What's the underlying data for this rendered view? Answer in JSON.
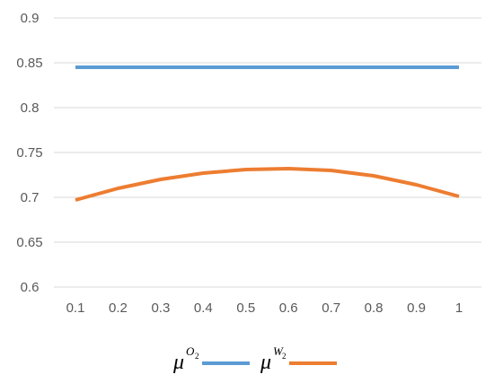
{
  "chart_data": {
    "type": "line",
    "title": "",
    "xlabel": "",
    "ylabel": "",
    "x": [
      0.1,
      0.2,
      0.3,
      0.4,
      0.5,
      0.6,
      0.7,
      0.8,
      0.9,
      1
    ],
    "x_tick_labels": [
      "0.1",
      "0.2",
      "0.3",
      "0.4",
      "0.5",
      "0.6",
      "0.7",
      "0.8",
      "0.9",
      "1"
    ],
    "ylim": [
      0.6,
      0.9
    ],
    "y_ticks": [
      0.6,
      0.65,
      0.7,
      0.75,
      0.8,
      0.85,
      0.9
    ],
    "y_tick_labels": [
      "0.6",
      "0.65",
      "0.7",
      "0.75",
      "0.8",
      "0.85",
      "0.9"
    ],
    "grid": "horizontal",
    "legend_position": "bottom",
    "series": [
      {
        "name_main": "μ",
        "name_sup": "O",
        "name_sub": "2",
        "color": "#5B9BD5",
        "values": [
          0.845,
          0.845,
          0.845,
          0.845,
          0.845,
          0.845,
          0.845,
          0.845,
          0.845,
          0.845
        ]
      },
      {
        "name_main": "μ",
        "name_sup": "W",
        "name_sub": "2",
        "color": "#ED7D31",
        "values": [
          0.697,
          0.71,
          0.72,
          0.727,
          0.731,
          0.732,
          0.73,
          0.724,
          0.714,
          0.701
        ]
      }
    ]
  }
}
